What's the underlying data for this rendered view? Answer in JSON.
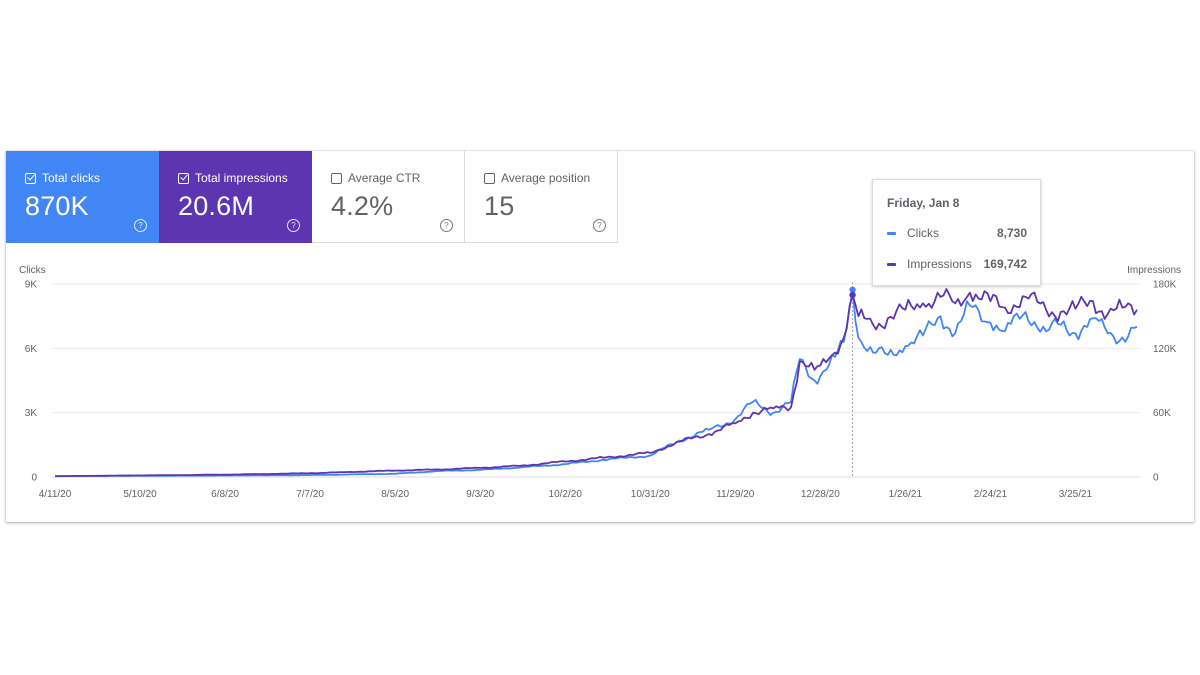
{
  "metrics": [
    {
      "label": "Total clicks",
      "value": "870K",
      "checked": true
    },
    {
      "label": "Total impressions",
      "value": "20.6M",
      "checked": true
    },
    {
      "label": "Average CTR",
      "value": "4.2%",
      "checked": false
    },
    {
      "label": "Average position",
      "value": "15",
      "checked": false
    }
  ],
  "help_glyph": "?",
  "tooltip": {
    "date": "Friday, Jan 8",
    "rows": [
      {
        "label": "Clicks",
        "value": "8,730"
      },
      {
        "label": "Impressions",
        "value": "169,742"
      }
    ]
  },
  "colors": {
    "clicks": "#4285f4",
    "impressions": "#5e35b1",
    "grid": "#e8eaed",
    "hover_line": "#9aa0a6"
  },
  "chart_data": {
    "type": "line",
    "x_start": "2020-04-11",
    "x_end": "2021-04-15",
    "x_ticks": [
      "4/11/20",
      "5/10/20",
      "6/8/20",
      "7/7/20",
      "8/5/20",
      "9/3/20",
      "10/2/20",
      "10/31/20",
      "11/29/20",
      "12/28/20",
      "1/26/21",
      "2/24/21",
      "3/25/21"
    ],
    "left_axis": {
      "label": "Clicks",
      "ticks": [
        "0",
        "3K",
        "6K",
        "9K"
      ],
      "ylim": [
        0,
        9000
      ]
    },
    "right_axis": {
      "label": "Impressions",
      "ticks": [
        "0",
        "60K",
        "120K",
        "180K"
      ],
      "ylim": [
        0,
        180000
      ]
    },
    "grid": true,
    "highlight_date": "2021-01-08",
    "series": [
      {
        "name": "Clicks",
        "axis": "left",
        "points": [
          [
            "2020-04-11",
            40
          ],
          [
            "2020-05-10",
            60
          ],
          [
            "2020-06-08",
            70
          ],
          [
            "2020-07-07",
            90
          ],
          [
            "2020-08-05",
            150
          ],
          [
            "2020-08-20",
            280
          ],
          [
            "2020-09-03",
            330
          ],
          [
            "2020-09-17",
            450
          ],
          [
            "2020-10-02",
            600
          ],
          [
            "2020-10-15",
            800
          ],
          [
            "2020-10-31",
            1000
          ],
          [
            "2020-11-10",
            1700
          ],
          [
            "2020-11-20",
            2200
          ],
          [
            "2020-11-29",
            2700
          ],
          [
            "2020-12-05",
            3500
          ],
          [
            "2020-12-12",
            3000
          ],
          [
            "2020-12-18",
            3500
          ],
          [
            "2020-12-21",
            5500
          ],
          [
            "2020-12-26",
            4500
          ],
          [
            "2020-12-28",
            4700
          ],
          [
            "2021-01-02",
            5600
          ],
          [
            "2021-01-05",
            6300
          ],
          [
            "2021-01-08",
            8730
          ],
          [
            "2021-01-10",
            6500
          ],
          [
            "2021-01-15",
            5800
          ],
          [
            "2021-01-20",
            5700
          ],
          [
            "2021-01-26",
            6100
          ],
          [
            "2021-02-01",
            6600
          ],
          [
            "2021-02-07",
            7500
          ],
          [
            "2021-02-12",
            6700
          ],
          [
            "2021-02-17",
            8000
          ],
          [
            "2021-02-24",
            7200
          ],
          [
            "2021-03-01",
            6800
          ],
          [
            "2021-03-08",
            7700
          ],
          [
            "2021-03-15",
            6800
          ],
          [
            "2021-03-20",
            7100
          ],
          [
            "2021-03-25",
            6700
          ],
          [
            "2021-03-31",
            7400
          ],
          [
            "2021-04-05",
            6700
          ],
          [
            "2021-04-10",
            6500
          ],
          [
            "2021-04-15",
            7000
          ]
        ]
      },
      {
        "name": "Impressions",
        "axis": "right",
        "points": [
          [
            "2020-04-11",
            800
          ],
          [
            "2020-05-10",
            1500
          ],
          [
            "2020-06-08",
            2200
          ],
          [
            "2020-07-07",
            3500
          ],
          [
            "2020-08-05",
            6000
          ],
          [
            "2020-08-20",
            7000
          ],
          [
            "2020-09-03",
            8500
          ],
          [
            "2020-09-17",
            10500
          ],
          [
            "2020-10-02",
            14500
          ],
          [
            "2020-10-15",
            18000
          ],
          [
            "2020-10-31",
            22500
          ],
          [
            "2020-11-10",
            33000
          ],
          [
            "2020-11-20",
            40000
          ],
          [
            "2020-11-29",
            50000
          ],
          [
            "2020-12-05",
            60000
          ],
          [
            "2020-12-12",
            64000
          ],
          [
            "2020-12-18",
            65000
          ],
          [
            "2020-12-21",
            108000
          ],
          [
            "2020-12-26",
            100000
          ],
          [
            "2020-12-28",
            104000
          ],
          [
            "2021-01-02",
            116000
          ],
          [
            "2021-01-05",
            130000
          ],
          [
            "2021-01-08",
            169742
          ],
          [
            "2021-01-10",
            150000
          ],
          [
            "2021-01-15",
            142000
          ],
          [
            "2021-01-20",
            148000
          ],
          [
            "2021-01-26",
            156000
          ],
          [
            "2021-02-01",
            162000
          ],
          [
            "2021-02-07",
            168000
          ],
          [
            "2021-02-12",
            162000
          ],
          [
            "2021-02-17",
            172000
          ],
          [
            "2021-02-24",
            164000
          ],
          [
            "2021-03-01",
            158000
          ],
          [
            "2021-03-08",
            168000
          ],
          [
            "2021-03-15",
            156000
          ],
          [
            "2021-03-20",
            154000
          ],
          [
            "2021-03-25",
            157000
          ],
          [
            "2021-03-31",
            164000
          ],
          [
            "2021-04-05",
            152000
          ],
          [
            "2021-04-10",
            158000
          ],
          [
            "2021-04-15",
            156000
          ]
        ]
      }
    ]
  }
}
